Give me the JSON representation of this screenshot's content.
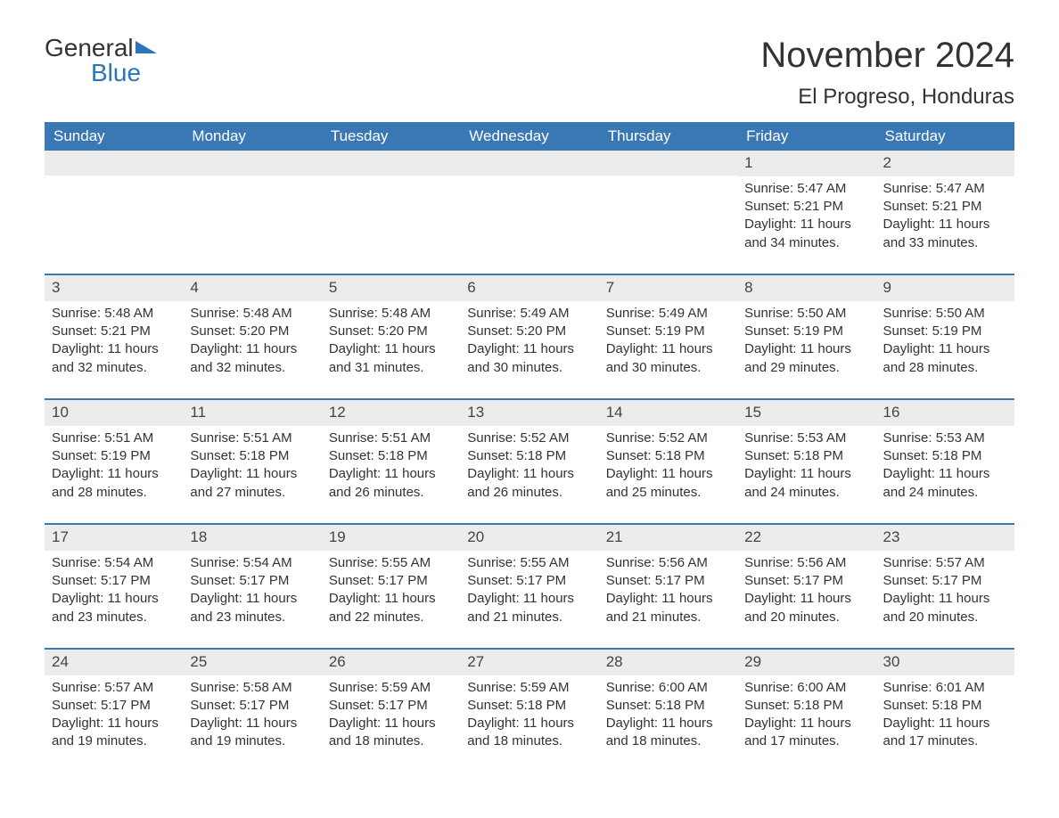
{
  "logo": {
    "general": "General",
    "blue": "Blue"
  },
  "header": {
    "month_title": "November 2024",
    "location": "El Progreso, Honduras"
  },
  "colors": {
    "header_bg": "#3a78b5",
    "header_text": "#ffffff",
    "daynum_bg": "#ececec",
    "day_border": "#3a78b5",
    "body_text": "#333333",
    "logo_blue": "#2e75b6",
    "page_bg": "#ffffff"
  },
  "daysOfWeek": [
    "Sunday",
    "Monday",
    "Tuesday",
    "Wednesday",
    "Thursday",
    "Friday",
    "Saturday"
  ],
  "weeks": [
    [
      null,
      null,
      null,
      null,
      null,
      {
        "n": "1",
        "sunrise": "5:47 AM",
        "sunset": "5:21 PM",
        "daylight": "11 hours and 34 minutes."
      },
      {
        "n": "2",
        "sunrise": "5:47 AM",
        "sunset": "5:21 PM",
        "daylight": "11 hours and 33 minutes."
      }
    ],
    [
      {
        "n": "3",
        "sunrise": "5:48 AM",
        "sunset": "5:21 PM",
        "daylight": "11 hours and 32 minutes."
      },
      {
        "n": "4",
        "sunrise": "5:48 AM",
        "sunset": "5:20 PM",
        "daylight": "11 hours and 32 minutes."
      },
      {
        "n": "5",
        "sunrise": "5:48 AM",
        "sunset": "5:20 PM",
        "daylight": "11 hours and 31 minutes."
      },
      {
        "n": "6",
        "sunrise": "5:49 AM",
        "sunset": "5:20 PM",
        "daylight": "11 hours and 30 minutes."
      },
      {
        "n": "7",
        "sunrise": "5:49 AM",
        "sunset": "5:19 PM",
        "daylight": "11 hours and 30 minutes."
      },
      {
        "n": "8",
        "sunrise": "5:50 AM",
        "sunset": "5:19 PM",
        "daylight": "11 hours and 29 minutes."
      },
      {
        "n": "9",
        "sunrise": "5:50 AM",
        "sunset": "5:19 PM",
        "daylight": "11 hours and 28 minutes."
      }
    ],
    [
      {
        "n": "10",
        "sunrise": "5:51 AM",
        "sunset": "5:19 PM",
        "daylight": "11 hours and 28 minutes."
      },
      {
        "n": "11",
        "sunrise": "5:51 AM",
        "sunset": "5:18 PM",
        "daylight": "11 hours and 27 minutes."
      },
      {
        "n": "12",
        "sunrise": "5:51 AM",
        "sunset": "5:18 PM",
        "daylight": "11 hours and 26 minutes."
      },
      {
        "n": "13",
        "sunrise": "5:52 AM",
        "sunset": "5:18 PM",
        "daylight": "11 hours and 26 minutes."
      },
      {
        "n": "14",
        "sunrise": "5:52 AM",
        "sunset": "5:18 PM",
        "daylight": "11 hours and 25 minutes."
      },
      {
        "n": "15",
        "sunrise": "5:53 AM",
        "sunset": "5:18 PM",
        "daylight": "11 hours and 24 minutes."
      },
      {
        "n": "16",
        "sunrise": "5:53 AM",
        "sunset": "5:18 PM",
        "daylight": "11 hours and 24 minutes."
      }
    ],
    [
      {
        "n": "17",
        "sunrise": "5:54 AM",
        "sunset": "5:17 PM",
        "daylight": "11 hours and 23 minutes."
      },
      {
        "n": "18",
        "sunrise": "5:54 AM",
        "sunset": "5:17 PM",
        "daylight": "11 hours and 23 minutes."
      },
      {
        "n": "19",
        "sunrise": "5:55 AM",
        "sunset": "5:17 PM",
        "daylight": "11 hours and 22 minutes."
      },
      {
        "n": "20",
        "sunrise": "5:55 AM",
        "sunset": "5:17 PM",
        "daylight": "11 hours and 21 minutes."
      },
      {
        "n": "21",
        "sunrise": "5:56 AM",
        "sunset": "5:17 PM",
        "daylight": "11 hours and 21 minutes."
      },
      {
        "n": "22",
        "sunrise": "5:56 AM",
        "sunset": "5:17 PM",
        "daylight": "11 hours and 20 minutes."
      },
      {
        "n": "23",
        "sunrise": "5:57 AM",
        "sunset": "5:17 PM",
        "daylight": "11 hours and 20 minutes."
      }
    ],
    [
      {
        "n": "24",
        "sunrise": "5:57 AM",
        "sunset": "5:17 PM",
        "daylight": "11 hours and 19 minutes."
      },
      {
        "n": "25",
        "sunrise": "5:58 AM",
        "sunset": "5:17 PM",
        "daylight": "11 hours and 19 minutes."
      },
      {
        "n": "26",
        "sunrise": "5:59 AM",
        "sunset": "5:17 PM",
        "daylight": "11 hours and 18 minutes."
      },
      {
        "n": "27",
        "sunrise": "5:59 AM",
        "sunset": "5:18 PM",
        "daylight": "11 hours and 18 minutes."
      },
      {
        "n": "28",
        "sunrise": "6:00 AM",
        "sunset": "5:18 PM",
        "daylight": "11 hours and 18 minutes."
      },
      {
        "n": "29",
        "sunrise": "6:00 AM",
        "sunset": "5:18 PM",
        "daylight": "11 hours and 17 minutes."
      },
      {
        "n": "30",
        "sunrise": "6:01 AM",
        "sunset": "5:18 PM",
        "daylight": "11 hours and 17 minutes."
      }
    ]
  ],
  "labels": {
    "sunrise": "Sunrise: ",
    "sunset": "Sunset: ",
    "daylight": "Daylight: "
  }
}
